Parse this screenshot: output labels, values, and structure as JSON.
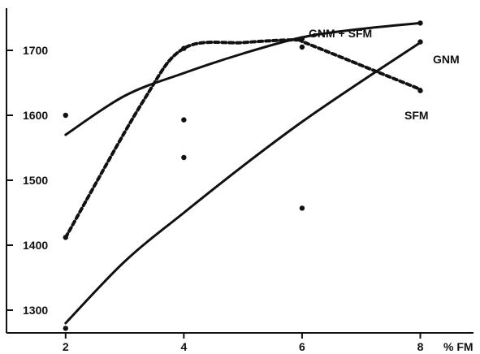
{
  "chart_data": {
    "type": "line",
    "title": "",
    "xlabel": "% FM",
    "ylabel": "",
    "x_ticks": [
      "2",
      "4",
      "6",
      "8"
    ],
    "y_ticks": [
      "1300",
      "1400",
      "1500",
      "1600",
      "1700"
    ],
    "xlim": [
      1.0,
      8.9
    ],
    "ylim": [
      1265,
      1765
    ],
    "series": [
      {
        "name": "GNM + SFM",
        "style": "solid",
        "x": [
          2,
          3,
          4,
          5,
          6,
          7,
          8
        ],
        "y": [
          1570,
          1630,
          1665,
          1695,
          1720,
          1733,
          1742
        ]
      },
      {
        "name": "GNM",
        "style": "solid",
        "x": [
          2,
          3,
          4,
          5,
          6,
          7,
          8
        ],
        "y": [
          1280,
          1375,
          1450,
          1522,
          1590,
          1652,
          1712
        ]
      },
      {
        "name": "SFM",
        "style": "dashed",
        "x": [
          2,
          3.3,
          4,
          5,
          5.9,
          6.1,
          8
        ],
        "y": [
          1412,
          1620,
          1703,
          1712,
          1716,
          1710,
          1640
        ]
      }
    ],
    "points": [
      {
        "x": 2,
        "y": 1272
      },
      {
        "x": 2,
        "y": 1412
      },
      {
        "x": 2,
        "y": 1600
      },
      {
        "x": 4,
        "y": 1535
      },
      {
        "x": 4,
        "y": 1593
      },
      {
        "x": 4,
        "y": 1703
      },
      {
        "x": 6,
        "y": 1457
      },
      {
        "x": 6,
        "y": 1705
      },
      {
        "x": 6,
        "y": 1718
      },
      {
        "x": 8,
        "y": 1638
      },
      {
        "x": 8,
        "y": 1713
      },
      {
        "x": 8,
        "y": 1742
      }
    ],
    "grid": false,
    "legend": "inline"
  }
}
